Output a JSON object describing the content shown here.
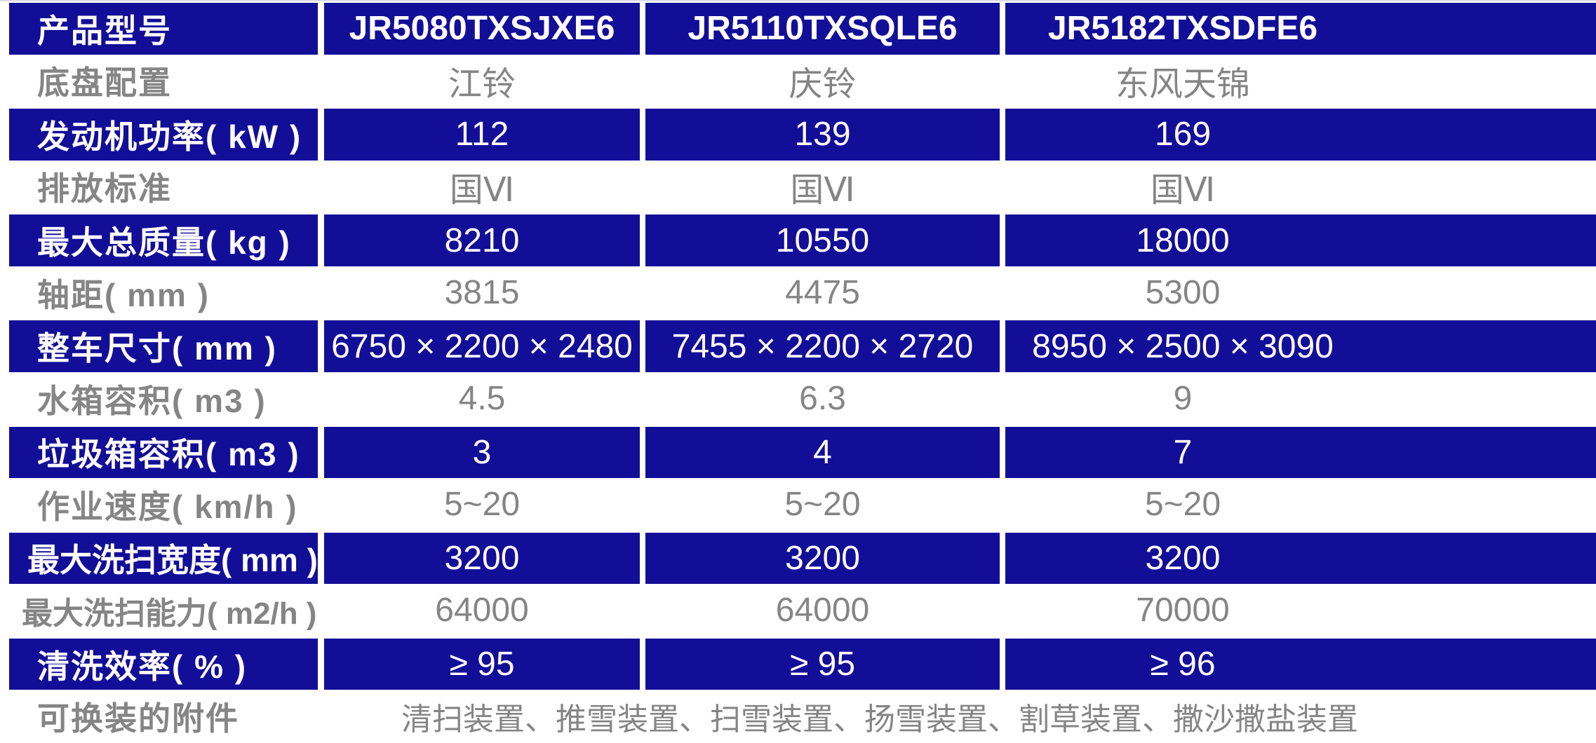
{
  "table": {
    "colors": {
      "highlight_bg": "#130E98",
      "highlight_text": "#FFFFFF",
      "muted_text": "#858585",
      "top_edge": "#DCDCE8"
    },
    "rows": [
      {
        "label": "产品型号",
        "values": [
          "JR5080TXSJXE6",
          "JR5110TXSQLE6",
          "JR5182TXSDFE6"
        ]
      },
      {
        "label": "底盘配置",
        "values": [
          "江铃",
          "庆铃",
          "东风天锦"
        ]
      },
      {
        "label": "发动机功率( kW )",
        "values": [
          "112",
          "139",
          "169"
        ]
      },
      {
        "label": "排放标准",
        "values": [
          "国Ⅵ",
          "国Ⅵ",
          "国Ⅵ"
        ]
      },
      {
        "label": "最大总质量( kg )",
        "values": [
          "8210",
          "10550",
          "18000"
        ]
      },
      {
        "label": "轴距( mm )",
        "values": [
          "3815",
          "4475",
          "5300"
        ]
      },
      {
        "label": "整车尺寸( mm )",
        "values": [
          "6750 × 2200 × 2480",
          "7455 × 2200 × 2720",
          "8950 × 2500 × 3090"
        ]
      },
      {
        "label": "水箱容积( m3 )",
        "values": [
          "4.5",
          "6.3",
          "9"
        ]
      },
      {
        "label": "垃圾箱容积( m3 )",
        "values": [
          "3",
          "4",
          "7"
        ]
      },
      {
        "label": "作业速度( km/h )",
        "values": [
          "5~20",
          "5~20",
          "5~20"
        ]
      },
      {
        "label": "最大洗扫宽度( mm )",
        "values": [
          "3200",
          "3200",
          "3200"
        ]
      },
      {
        "label": "最大洗扫能力( m2/h )",
        "values": [
          "64000",
          "64000",
          "70000"
        ]
      },
      {
        "label": "清洗效率( % )",
        "values": [
          "≥ 95",
          "≥ 95",
          "≥ 96"
        ]
      },
      {
        "label": "可换装的附件",
        "merged_value": "清扫装置、推雪装置、扫雪装置、扬雪装置、割草装置、撒沙撒盐装置"
      }
    ]
  }
}
